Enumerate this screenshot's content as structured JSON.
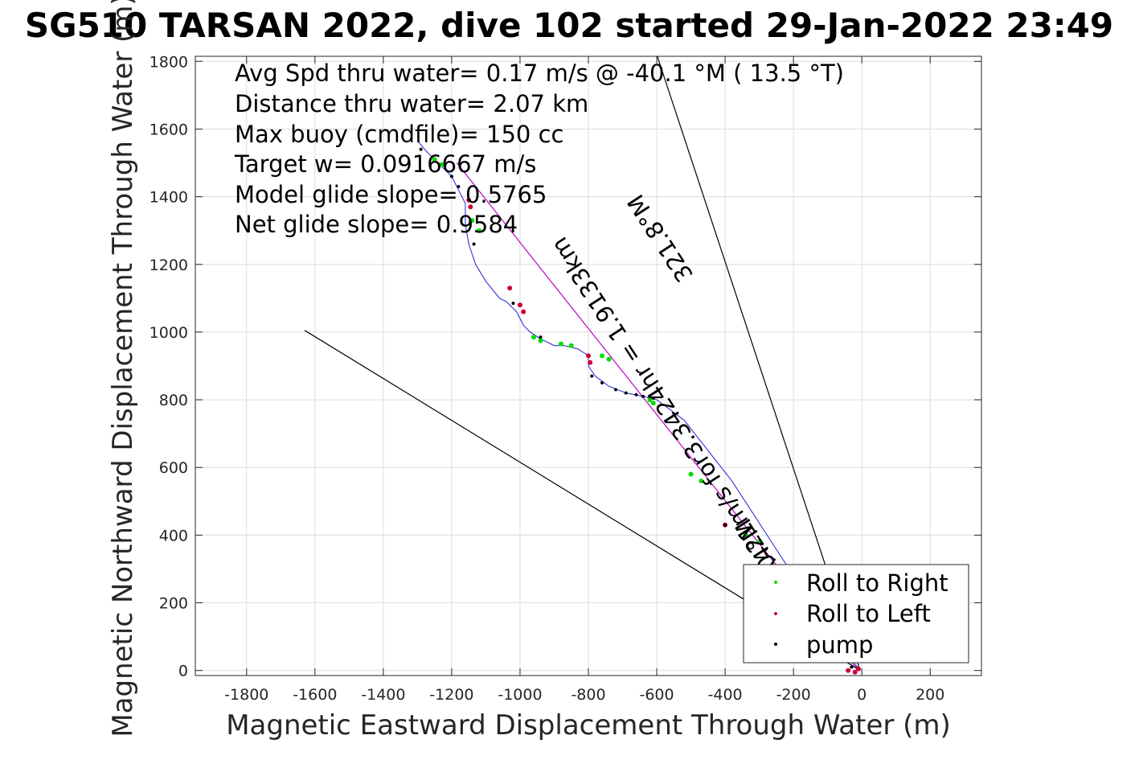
{
  "chart_data": {
    "type": "scatter",
    "title": "SG510 TARSAN 2022, dive 102 started 29-Jan-2022 23:49",
    "xlabel": "Magnetic Eastward Displacement Through Water (m)",
    "ylabel": "Magnetic Northward Displacement Through Water (m)",
    "xlim": [
      -1950,
      350
    ],
    "ylim": [
      -15,
      1815
    ],
    "xticks": [
      -1800,
      -1600,
      -1400,
      -1200,
      -1000,
      -800,
      -600,
      -400,
      -200,
      0,
      200
    ],
    "yticks": [
      0,
      200,
      400,
      600,
      800,
      1000,
      1200,
      1400,
      1600,
      1800
    ],
    "grid": true,
    "legend_position": "bottom-right",
    "annotations": [
      "Avg Spd thru water=  0.17 m/s @ -40.1 °M ( 13.5 °T)",
      "Distance thru water=  2.07 km",
      "Max buoy (cmdfile)= 150 cc",
      "Target w= 0.0916667 m/s",
      "Model glide slope= 0.5765",
      "Net glide slope= 0.9584"
    ],
    "rotated_labels": [
      {
        "text": "321.8°M",
        "x": -570,
        "y": 1290,
        "angle": 57
      },
      {
        "text": "0.21m/s for3.3424hr = 1.9133km",
        "x": -560,
        "y": 800,
        "angle": 57
      },
      {
        "text": "-38.4°M",
        "x": -260,
        "y": 340,
        "angle": 57
      }
    ],
    "series": [
      {
        "name": "track",
        "color": "#1f1fd6",
        "x": [
          -5,
          -60,
          -120,
          -200,
          -290,
          -380,
          -450,
          -520,
          -600,
          -640,
          -690,
          -740,
          -780,
          -800,
          -800,
          -830,
          -870,
          -900,
          -940,
          -970,
          -990,
          -1000,
          -1010,
          -1030,
          -1040,
          -1060,
          -1100,
          -1130,
          -1150,
          -1160,
          -1160,
          -1180,
          -1200,
          -1230,
          -1270,
          -1300
        ],
        "y": [
          0,
          50,
          150,
          280,
          420,
          560,
          650,
          740,
          800,
          810,
          820,
          840,
          870,
          900,
          930,
          950,
          960,
          960,
          980,
          1000,
          1020,
          1040,
          1060,
          1080,
          1090,
          1100,
          1150,
          1200,
          1260,
          1320,
          1380,
          1420,
          1460,
          1490,
          1530,
          1565
        ]
      },
      {
        "name": "vector-1",
        "color": "#c000c0",
        "x": [
          -5,
          -1185
        ],
        "y": [
          0,
          1500
        ]
      },
      {
        "name": "vector-2",
        "color": "#000000",
        "x": [
          -5,
          -600
        ],
        "y": [
          0,
          1820
        ]
      },
      {
        "name": "vector-3",
        "color": "#000000",
        "x": [
          -5,
          -1630
        ],
        "y": [
          0,
          1005
        ]
      },
      {
        "name": "Roll to Right",
        "color": "#00dd00",
        "x": [
          -1250,
          -1230,
          -1140,
          -1120,
          -960,
          -940,
          -880,
          -850,
          -760,
          -740,
          -620,
          -610,
          -500,
          -470,
          -340,
          -300
        ],
        "y": [
          1510,
          1495,
          1330,
          1300,
          985,
          975,
          965,
          960,
          930,
          920,
          800,
          790,
          580,
          560,
          400,
          380
        ]
      },
      {
        "name": "Roll to Left",
        "color": "#cc0033",
        "x": [
          -1150,
          -1145,
          -1030,
          -1000,
          -990,
          -800,
          -795,
          -400,
          -40,
          -20,
          -10
        ],
        "y": [
          1390,
          1370,
          1130,
          1080,
          1060,
          930,
          910,
          430,
          0,
          -5,
          5
        ]
      },
      {
        "name": "pump",
        "color": "#000000",
        "x": [
          -1290,
          -1200,
          -1180,
          -1135,
          -1020,
          -940,
          -790,
          -760,
          -720,
          -690,
          -660,
          -640,
          -610,
          -400,
          -60,
          -30
        ],
        "y": [
          1540,
          1460,
          1430,
          1260,
          1085,
          985,
          870,
          850,
          830,
          820,
          815,
          810,
          805,
          430,
          40,
          10
        ]
      }
    ]
  }
}
